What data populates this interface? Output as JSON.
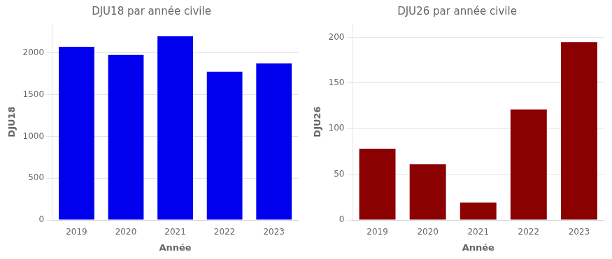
{
  "chart_data": [
    {
      "type": "bar",
      "title": "DJU18 par année civile",
      "xlabel": "Année",
      "ylabel": "DJU18",
      "categories": [
        "2019",
        "2020",
        "2021",
        "2022",
        "2023"
      ],
      "values": [
        2075,
        1975,
        2200,
        1775,
        1875
      ],
      "color": "#0000EE",
      "ylim": [
        0,
        2350
      ],
      "yticks": [
        0,
        500,
        1000,
        1500,
        2000
      ],
      "grid": true
    },
    {
      "type": "bar",
      "title": "DJU26 par année civile",
      "xlabel": "Année",
      "ylabel": "DJU26",
      "categories": [
        "2019",
        "2020",
        "2021",
        "2022",
        "2023"
      ],
      "values": [
        78,
        61,
        19,
        121,
        195
      ],
      "color": "#8B0000",
      "ylim": [
        0,
        215
      ],
      "yticks": [
        0,
        50,
        100,
        150,
        200
      ],
      "grid": true
    }
  ]
}
